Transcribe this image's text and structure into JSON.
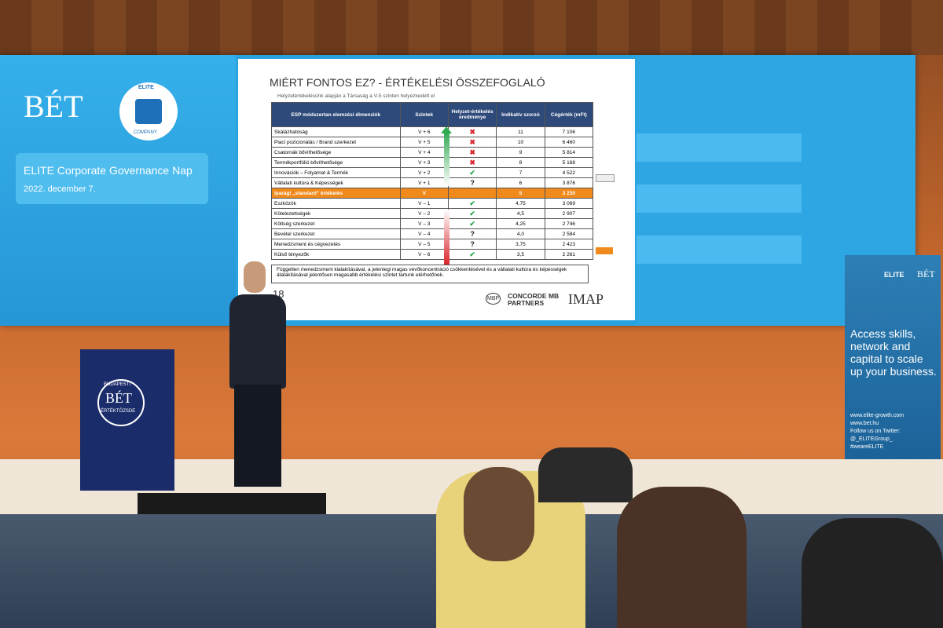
{
  "screen_left": {
    "logo": "BÉT",
    "elite": "ELITE",
    "company": "COMPANY",
    "event": "ELITE Corporate Governance Nap",
    "date": "2022. december 7."
  },
  "slide": {
    "title": "MIÉRT FONTOS EZ? - ÉRTÉKELÉSI ÖSSZEFOGLALÓ",
    "subtitle": "Helyzetértékelésünk alapján a Társaság a V-5 szinten helyezkedett el",
    "table": {
      "header": [
        "ESP módszertan elemzési dimenziók",
        "Szintek",
        "Helyzet-értékelés eredménye",
        "Indikatív szorzó",
        "Cégérték (mFt)"
      ],
      "rows": [
        [
          "Skálázhatóság",
          "V + 6",
          {
            "text": "✖",
            "color": "#d9262b"
          },
          "11",
          "7 106"
        ],
        [
          "Piaci pozicionálás / Brand szerkezet",
          "V + 5",
          {
            "text": "✖",
            "color": "#d9262b"
          },
          "10",
          "6 460"
        ],
        [
          "Csatornák bővíthetősége",
          "V + 4",
          {
            "text": "✖",
            "color": "#d9262b"
          },
          "9",
          "5 814"
        ],
        [
          "Termékportfólió bővíthetősége",
          "V + 3",
          {
            "text": "✖",
            "color": "#d9262b"
          },
          "8",
          "5 168"
        ],
        [
          "Innovációk – Folyamat & Termék",
          "V + 2",
          {
            "text": "✔",
            "color": "#2fa84f"
          },
          "7",
          "4 522"
        ],
        [
          "Vállalati kultúra & Képességek",
          "V + 1",
          {
            "text": "?",
            "color": "#222222"
          },
          "6",
          "3 876"
        ],
        [
          "Iparági „standard” értékelés",
          "V",
          null,
          "5",
          "3 230"
        ],
        [
          "Eszközök",
          "V – 1",
          {
            "text": "✔",
            "color": "#2fa84f"
          },
          "4,75",
          "3 069"
        ],
        [
          "Kötelezettségek",
          "V – 2",
          {
            "text": "✔",
            "color": "#2fa84f"
          },
          "4,5",
          "2 907"
        ],
        [
          "Költség szerkezet",
          "V – 3",
          {
            "text": "✔",
            "color": "#2fa84f"
          },
          "4,25",
          "2 746"
        ],
        [
          "Bevétel szerkezet",
          "V – 4",
          {
            "text": "?",
            "color": "#222222"
          },
          "4,0",
          "2 584"
        ],
        [
          "Menedzsment és cégvezetés",
          "V – 5",
          {
            "text": "?",
            "color": "#222222"
          },
          "3,75",
          "2 423"
        ],
        [
          "Külső tényezők",
          "V – 6",
          {
            "text": "✔",
            "color": "#2fa84f"
          },
          "3,5",
          "2 261"
        ]
      ]
    },
    "note": "Független menedzsment kialakításával, a jelenlegi magas vevőkoncentráció csökkentésével és a vállalati kultúra és képességek átalakításával jelentősen magasabb értékelési szintet tartunk elérhetőnek.",
    "page": "18",
    "logo_small": "MBP",
    "logo_name": "CONCORDE MB PARTNERS",
    "logo_imap": "IMAP"
  },
  "banner": {
    "elite": "ELITE",
    "bet": "BÉT",
    "headline": "Access skills, network and capital to scale up your business.",
    "web1": "www.elite-growth.com",
    "web2": "www.bet.hu",
    "follow": "Follow us on Twitter:",
    "handle": "@_ELITEGroup_",
    "hashtag": "#weareELITE"
  },
  "podium": {
    "top": "BUDAPESTI",
    "logo": "BÉT",
    "bottom": "ÉRTÉKTŐZSDE"
  }
}
